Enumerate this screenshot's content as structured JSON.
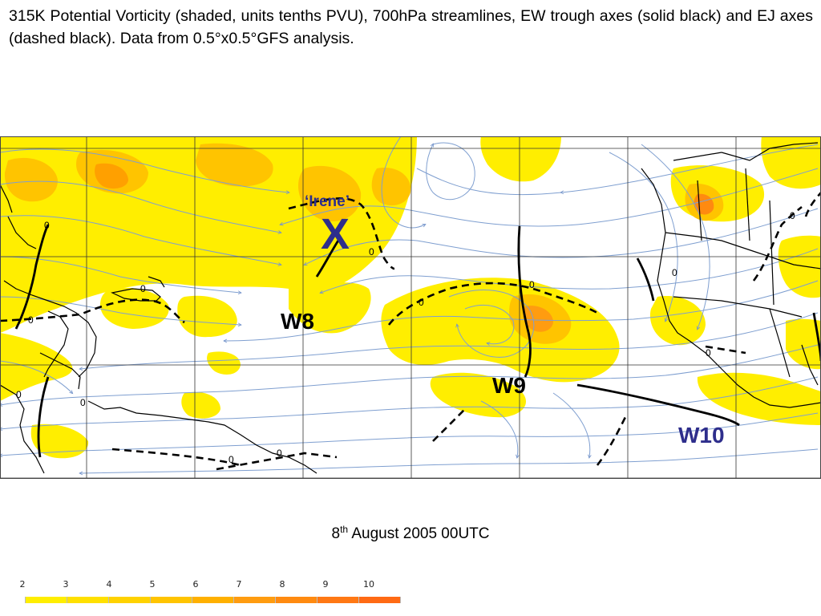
{
  "caption": "315K Potential Vorticity (shaded, units tenths PVU), 700hPa streamlines, EW trough axes (solid black) and EJ axes (dashed black). Data from 0.5°x0.5°GFS analysis.",
  "date": {
    "day": "8",
    "suffix": "th",
    "rest": "August 2005 00UTC"
  },
  "storm": {
    "name": "‘Irene’",
    "marker": "X",
    "color": "#2e2e8c"
  },
  "waves": [
    {
      "id": "W8",
      "color": "#000000"
    },
    {
      "id": "W9",
      "color": "#000000"
    },
    {
      "id": "W10",
      "color": "#2e2e8c"
    }
  ],
  "contour_labels": [
    "0",
    "0",
    "0",
    "0",
    "0",
    "0",
    "0",
    "0",
    "0",
    "0",
    "0",
    "0",
    "0"
  ],
  "colorbar": {
    "labels": [
      "2",
      "3",
      "4",
      "5",
      "6",
      "7",
      "8",
      "9",
      "10"
    ],
    "colors": [
      "#ffffff",
      "#ffee00",
      "#ffe000",
      "#ffd200",
      "#ffc400",
      "#ffb000",
      "#ff9c10",
      "#ff8a10",
      "#ff7814",
      "#ff6a14"
    ]
  },
  "palette": {
    "pv_low": "#ffee00",
    "pv_mid": "#ffc400",
    "pv_high": "#ff8a10",
    "streamline": "#7f9fd0",
    "grid": "#333333",
    "coast": "#000000"
  }
}
